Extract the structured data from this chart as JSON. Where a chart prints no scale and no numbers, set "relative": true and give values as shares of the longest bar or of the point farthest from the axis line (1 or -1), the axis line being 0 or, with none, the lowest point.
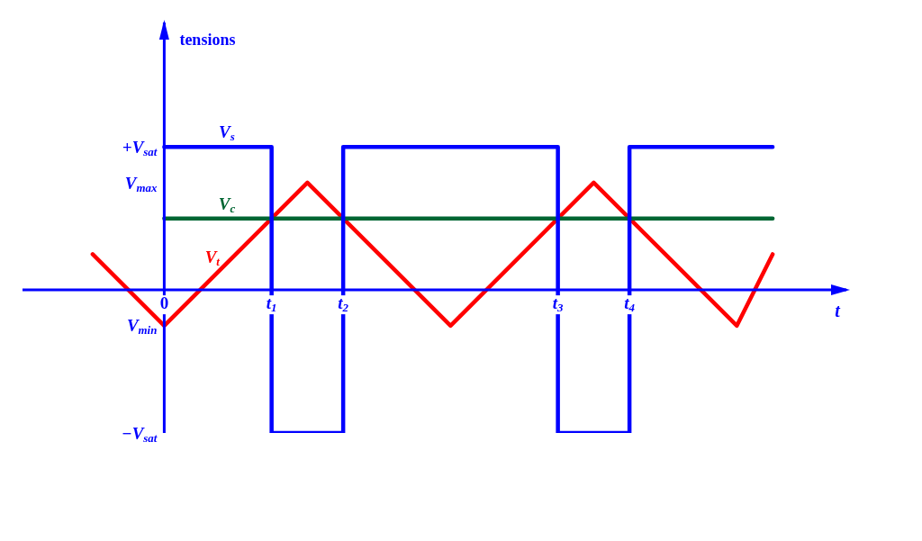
{
  "chart_data": {
    "type": "line",
    "xlabel": "t",
    "relative": true,
    "line_style": "solid",
    "categories": [
      null,
      null,
      "0",
      null,
      null,
      "t$_{1}$",
      null,
      "t$_{2}$",
      null,
      null,
      null,
      null,
      null,
      "t$_{3}$",
      null,
      "t$_{4}$",
      null,
      null,
      null,
      null
    ],
    "annotations": [
      "tensions",
      "+V$_{sat}$",
      "V$_{max}$",
      "V$_{min}$",
      "−V$_{sat}$"
    ],
    "ref_lines": [
      {
        "axis": "y",
        "value": 0,
        "color": "#0000ff"
      }
    ],
    "series": [
      {
        "name": "V$_{t}$",
        "color": "#ff0000",
        "type": "line",
        "values": [
          0.25,
          0,
          -0.25,
          0,
          0.25,
          0.5,
          0.75,
          0.5,
          0.25,
          0,
          -0.25,
          0,
          0.25,
          0.5,
          0.75,
          0.5,
          0.25,
          0,
          -0.25,
          0.25
        ]
      },
      {
        "name": "V$_{c}$",
        "color": "#006633",
        "type": "line",
        "values": [
          null,
          null,
          0.5,
          0.5,
          0.5,
          0.5,
          0.5,
          0.5,
          0.5,
          0.5,
          0.5,
          0.5,
          0.5,
          0.5,
          0.5,
          0.5,
          0.5,
          0.5,
          0.5,
          0.5
        ]
      },
      {
        "name": "V$_{s}$",
        "color": "#0000ff",
        "type": "step",
        "values": [
          null,
          null,
          1,
          1,
          1,
          -1,
          -1,
          1,
          1,
          1,
          1,
          1,
          1,
          -1,
          -1,
          1,
          1,
          1,
          1,
          1
        ]
      }
    ]
  }
}
